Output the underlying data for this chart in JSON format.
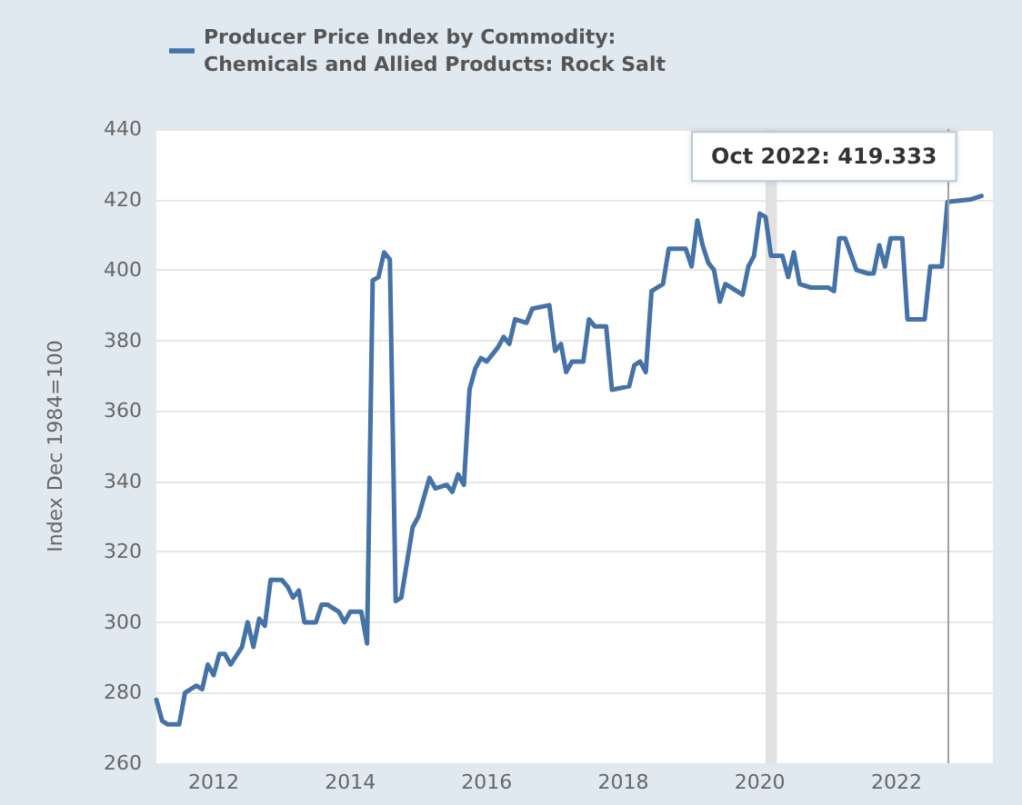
{
  "chart_data": {
    "type": "line",
    "ylabel": "Index Dec 1984=100",
    "series": [
      {
        "name": "Producer Price Index by Commodity: Chemicals and Allied Products: Rock Salt",
        "color": "#4572a7",
        "x": [
          "2011-03",
          "2011-04",
          "2011-05",
          "2011-07",
          "2011-08",
          "2011-10",
          "2011-11",
          "2011-12",
          "2012-01",
          "2012-02",
          "2012-03",
          "2012-04",
          "2012-06",
          "2012-07",
          "2012-08",
          "2012-09",
          "2012-10",
          "2012-11",
          "2013-01",
          "2013-02",
          "2013-03",
          "2013-04",
          "2013-05",
          "2013-07",
          "2013-08",
          "2013-09",
          "2013-11",
          "2013-12",
          "2014-01",
          "2014-03",
          "2014-04",
          "2014-05",
          "2014-06",
          "2014-07",
          "2014-08",
          "2014-09",
          "2014-10",
          "2014-12",
          "2015-01",
          "2015-03",
          "2015-04",
          "2015-06",
          "2015-07",
          "2015-08",
          "2015-09",
          "2015-10",
          "2015-11",
          "2015-12",
          "2016-01",
          "2016-03",
          "2016-04",
          "2016-05",
          "2016-06",
          "2016-08",
          "2016-09",
          "2016-12",
          "2017-01",
          "2017-02",
          "2017-03",
          "2017-04",
          "2017-06",
          "2017-07",
          "2017-08",
          "2017-10",
          "2017-11",
          "2018-02",
          "2018-03",
          "2018-04",
          "2018-05",
          "2018-06",
          "2018-08",
          "2018-09",
          "2018-12",
          "2019-01",
          "2019-02",
          "2019-03",
          "2019-04",
          "2019-05",
          "2019-06",
          "2019-07",
          "2019-08",
          "2019-10",
          "2019-11",
          "2019-12",
          "2020-01",
          "2020-02",
          "2020-03",
          "2020-05",
          "2020-06",
          "2020-07",
          "2020-08",
          "2020-10",
          "2020-11",
          "2021-01",
          "2021-02",
          "2021-03",
          "2021-04",
          "2021-06",
          "2021-08",
          "2021-09",
          "2021-10",
          "2021-11",
          "2021-12",
          "2022-02",
          "2022-03",
          "2022-06",
          "2022-07",
          "2022-09",
          "2022-10",
          "2022-11",
          "2023-02",
          "2023-04"
        ],
        "values": [
          278,
          272,
          271,
          271,
          280,
          282,
          281,
          288,
          285,
          291,
          291,
          288,
          293,
          300,
          293,
          301,
          299,
          312,
          312,
          310,
          307,
          309,
          300,
          300,
          305,
          305,
          303,
          300,
          303,
          303,
          294,
          397,
          398,
          405,
          403,
          306,
          307,
          327,
          330,
          341,
          338,
          339,
          337,
          342,
          339,
          366,
          372,
          375,
          374,
          378,
          381,
          379,
          386,
          385,
          389,
          390,
          377,
          379,
          371,
          374,
          374,
          386,
          384,
          384,
          366,
          367,
          373,
          374,
          371,
          394,
          396,
          406,
          406,
          401,
          414,
          407,
          402,
          400,
          391,
          396,
          395,
          393,
          401,
          404,
          416,
          415,
          404,
          404,
          398,
          405,
          396,
          395,
          395,
          395,
          394,
          409,
          409,
          400,
          399,
          399,
          407,
          401,
          409,
          409,
          386,
          386,
          401,
          401,
          419.333,
          419.5,
          420,
          421
        ]
      }
    ],
    "xlim": [
      "2011-03",
      "2023-06"
    ],
    "xticks": [
      {
        "value": "2012",
        "label": "2012"
      },
      {
        "value": "2014",
        "label": "2014"
      },
      {
        "value": "2016",
        "label": "2016"
      },
      {
        "value": "2018",
        "label": "2018"
      },
      {
        "value": "2020",
        "label": "2020"
      },
      {
        "value": "2022",
        "label": "2022"
      }
    ],
    "ylim": [
      260,
      440
    ],
    "yticks": [
      260,
      280,
      300,
      320,
      340,
      360,
      380,
      400,
      420,
      440
    ],
    "grid": "y",
    "legend": "top left",
    "marker": "none",
    "line_style": "solid",
    "ref_lines": [
      {
        "axis": "x",
        "value": "2022-10",
        "color": "#a0a0a0"
      }
    ],
    "bands": [
      {
        "axis": "x",
        "from": "2020-02",
        "to": "2020-04",
        "color": "#e1e1e1"
      }
    ],
    "annotations": [
      {
        "text": "Oct 2022: 419.333",
        "x": "2022-10",
        "y": 419.333
      }
    ]
  }
}
